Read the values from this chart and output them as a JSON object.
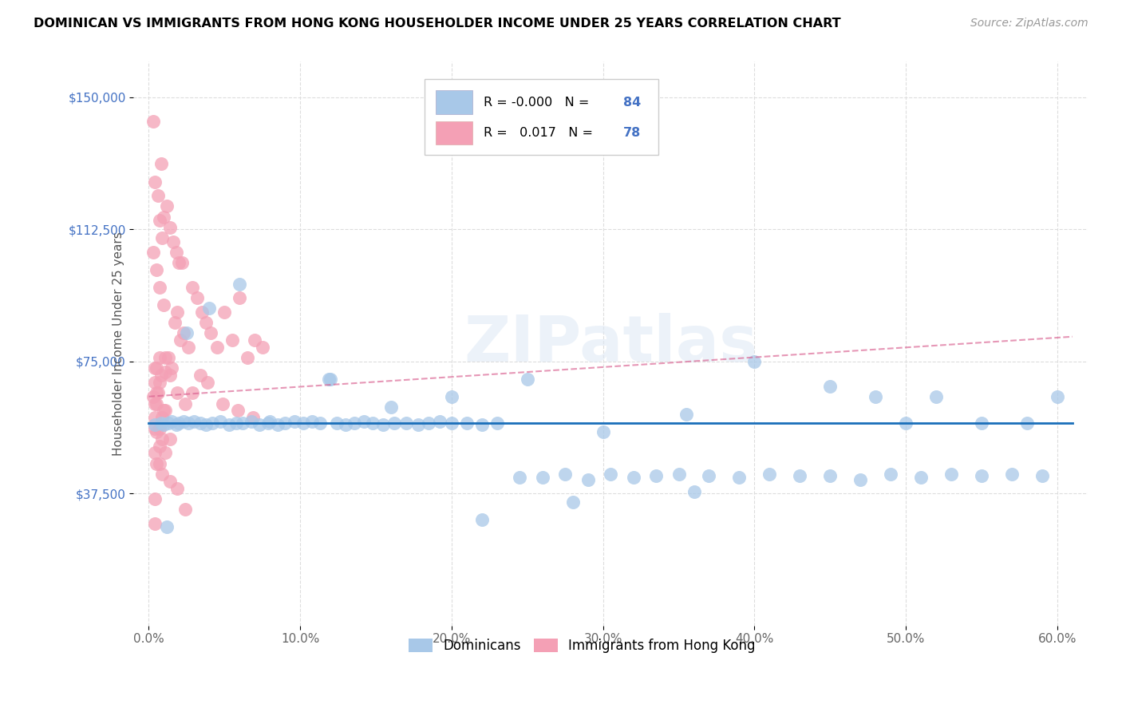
{
  "title": "DOMINICAN VS IMMIGRANTS FROM HONG KONG HOUSEHOLDER INCOME UNDER 25 YEARS CORRELATION CHART",
  "source": "Source: ZipAtlas.com",
  "ylabel": "Householder Income Under 25 years",
  "xlabel_ticks": [
    "0.0%",
    "10.0%",
    "20.0%",
    "30.0%",
    "40.0%",
    "50.0%",
    "60.0%"
  ],
  "xlabel_vals": [
    0,
    10,
    20,
    30,
    40,
    50,
    60
  ],
  "ytick_labels": [
    "$150,000",
    "$112,500",
    "$75,000",
    "$37,500"
  ],
  "ytick_vals": [
    150000,
    112500,
    75000,
    37500
  ],
  "ylim": [
    0,
    160000
  ],
  "xlim": [
    -1,
    62
  ],
  "legend_r_blue": "-0.000",
  "legend_n_blue": "84",
  "legend_r_pink": "0.017",
  "legend_n_pink": "78",
  "blue_color": "#a8c8e8",
  "pink_color": "#f4a0b5",
  "trend_blue_color": "#1a6fba",
  "trend_pink_color": "#d96090",
  "watermark": "ZIPatlas",
  "blue_trend_y": 57500,
  "pink_trend_y0": 65000,
  "pink_trend_y1": 82000,
  "dominicans_x": [
    0.4,
    0.8,
    1.0,
    1.3,
    1.5,
    1.8,
    2.0,
    2.3,
    2.6,
    3.0,
    3.4,
    3.8,
    4.2,
    4.7,
    5.3,
    5.8,
    6.2,
    6.8,
    7.3,
    7.9,
    8.5,
    9.0,
    9.6,
    10.2,
    10.8,
    11.3,
    11.9,
    12.4,
    13.0,
    13.6,
    14.2,
    14.8,
    15.5,
    16.2,
    17.0,
    17.8,
    18.5,
    19.2,
    20.0,
    21.0,
    22.0,
    23.0,
    24.5,
    26.0,
    27.5,
    29.0,
    30.5,
    32.0,
    33.5,
    35.0,
    37.0,
    39.0,
    41.0,
    43.0,
    45.0,
    47.0,
    49.0,
    51.0,
    53.0,
    55.0,
    57.0,
    59.0,
    1.2,
    2.5,
    4.0,
    6.0,
    8.0,
    12.0,
    16.0,
    20.0,
    25.0,
    30.0,
    35.5,
    40.0,
    45.0,
    48.0,
    50.0,
    52.0,
    55.0,
    58.0,
    60.0,
    22.0,
    28.0,
    36.0
  ],
  "dominicans_y": [
    57000,
    57500,
    57000,
    57500,
    58000,
    57000,
    57500,
    58000,
    57500,
    58000,
    57500,
    57000,
    57500,
    58000,
    57000,
    57500,
    57500,
    58000,
    57000,
    57500,
    57000,
    57500,
    58000,
    57500,
    58000,
    57500,
    70000,
    57500,
    57000,
    57500,
    58000,
    57500,
    57000,
    57500,
    57500,
    57000,
    57500,
    58000,
    57500,
    57500,
    57000,
    57500,
    42000,
    42000,
    43000,
    41500,
    43000,
    42000,
    42500,
    43000,
    42500,
    42000,
    43000,
    42500,
    42500,
    41500,
    43000,
    42000,
    43000,
    42500,
    43000,
    42500,
    28000,
    83000,
    90000,
    97000,
    58000,
    70000,
    62000,
    65000,
    70000,
    55000,
    60000,
    75000,
    68000,
    65000,
    57500,
    65000,
    57500,
    57500,
    65000,
    30000,
    35000,
    38000
  ],
  "hk_x": [
    0.3,
    0.5,
    0.7,
    0.9,
    1.1,
    1.3,
    1.5,
    1.7,
    1.9,
    2.1,
    2.3,
    2.6,
    2.9,
    3.2,
    3.5,
    3.8,
    4.1,
    4.5,
    5.0,
    5.5,
    6.0,
    6.5,
    7.0,
    7.5,
    0.4,
    0.6,
    0.8,
    1.0,
    1.2,
    1.4,
    1.6,
    1.8,
    2.0,
    2.2,
    0.4,
    0.6,
    0.8,
    0.4,
    0.7,
    1.1,
    1.4,
    0.5,
    0.3,
    0.5,
    0.7,
    1.0,
    0.4,
    0.5,
    0.9,
    1.4,
    1.9,
    2.4,
    0.4,
    0.7,
    1.1,
    0.4,
    0.9,
    0.7,
    0.4,
    2.4,
    2.9,
    3.4,
    3.9,
    4.9,
    5.9,
    6.9,
    0.5,
    1.0,
    0.4,
    0.7,
    1.1,
    1.4,
    0.3,
    1.9,
    0.9,
    0.4,
    0.7,
    0.5
  ],
  "hk_y": [
    65000,
    63000,
    115000,
    110000,
    72000,
    76000,
    73000,
    86000,
    89000,
    81000,
    83000,
    79000,
    96000,
    93000,
    89000,
    86000,
    83000,
    79000,
    89000,
    81000,
    93000,
    76000,
    81000,
    79000,
    126000,
    122000,
    131000,
    116000,
    119000,
    113000,
    109000,
    106000,
    103000,
    103000,
    69000,
    66000,
    71000,
    59000,
    56000,
    61000,
    53000,
    73000,
    106000,
    101000,
    96000,
    91000,
    49000,
    46000,
    43000,
    41000,
    39000,
    33000,
    56000,
    51000,
    49000,
    63000,
    59000,
    76000,
    29000,
    63000,
    66000,
    71000,
    69000,
    63000,
    61000,
    59000,
    66000,
    61000,
    73000,
    69000,
    76000,
    71000,
    143000,
    66000,
    53000,
    36000,
    46000,
    55000
  ]
}
